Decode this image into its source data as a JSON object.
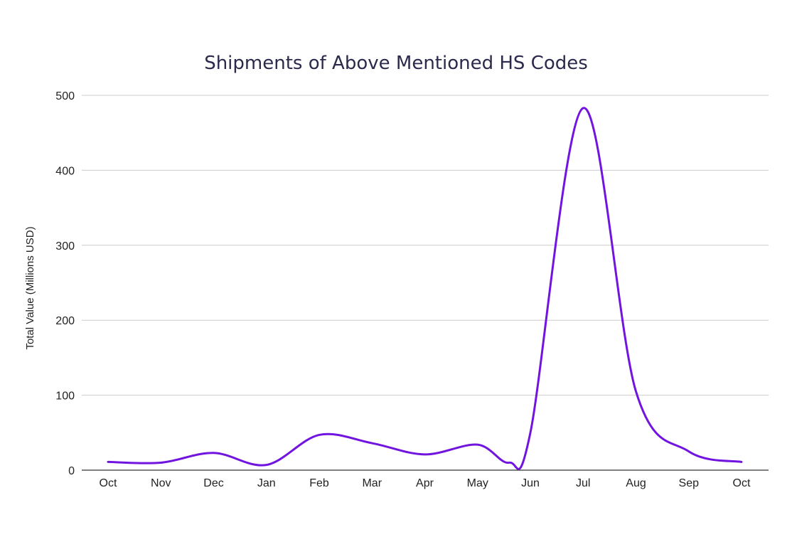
{
  "chart_data": {
    "type": "line",
    "title": "Shipments of Above Mentioned HS Codes",
    "xlabel": "",
    "ylabel": "Total Value (Millions USD)",
    "ylim": [
      0,
      500
    ],
    "yticks": [
      0,
      100,
      200,
      300,
      400,
      500
    ],
    "categories": [
      "Oct",
      "Nov",
      "Dec",
      "Jan",
      "Feb",
      "Mar",
      "Apr",
      "May",
      "Jun",
      "Jul",
      "Aug",
      "Sep",
      "Oct"
    ],
    "grid": true,
    "legend": "none",
    "series": [
      {
        "color": "#7214e0",
        "points": [
          {
            "x": 0,
            "y": 11
          },
          {
            "x": 1,
            "y": 10
          },
          {
            "x": 2,
            "y": 23
          },
          {
            "x": 3,
            "y": 7
          },
          {
            "x": 4,
            "y": 47
          },
          {
            "x": 5,
            "y": 36
          },
          {
            "x": 6,
            "y": 21
          },
          {
            "x": 7,
            "y": 34
          },
          {
            "x": 7.6,
            "y": 10
          },
          {
            "x": 8,
            "y": 50
          },
          {
            "x": 9,
            "y": 483
          },
          {
            "x": 10,
            "y": 105
          },
          {
            "x": 11,
            "y": 25
          },
          {
            "x": 12,
            "y": 11
          }
        ]
      }
    ]
  }
}
